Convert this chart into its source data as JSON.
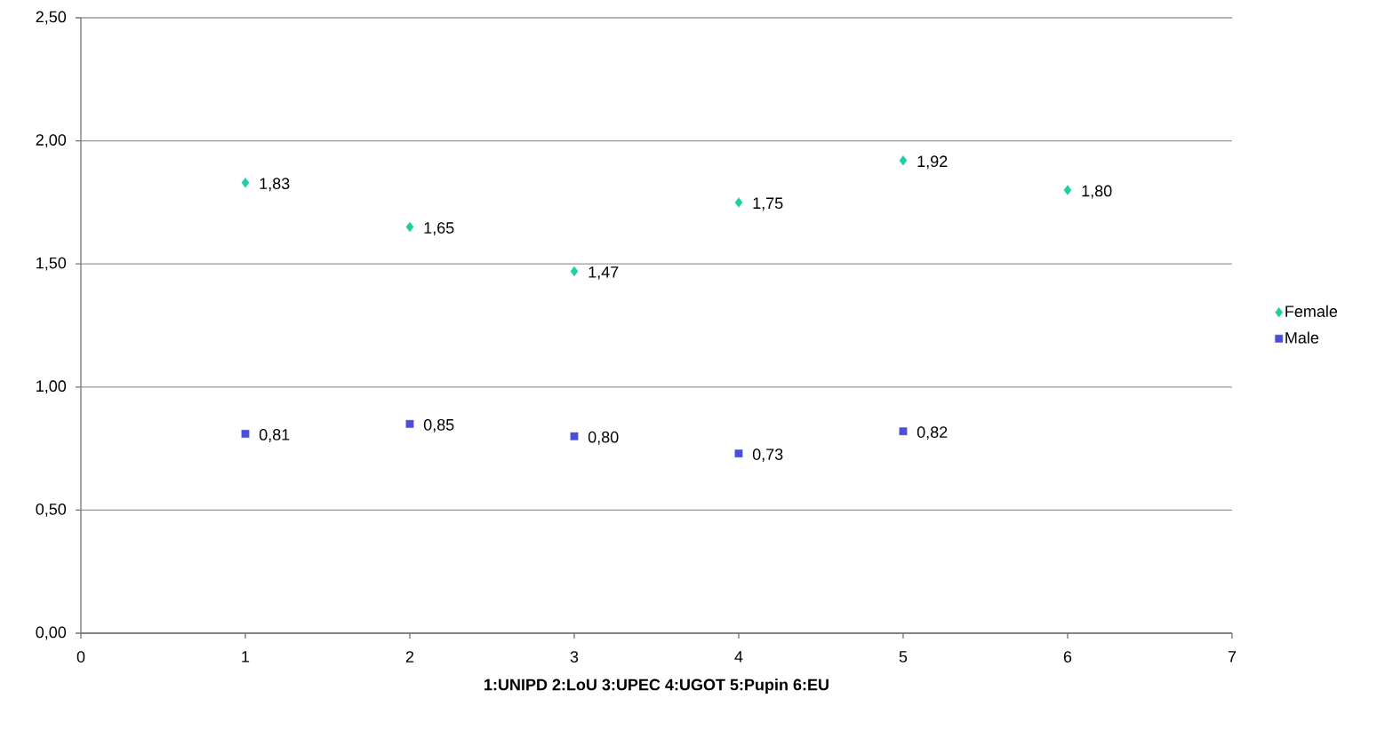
{
  "chart_data": {
    "type": "scatter",
    "xlabel": "1:UNIPD  2:LoU  3:UPEC   4:UGOT   5:Pupin   6:EU",
    "series": [
      {
        "name": "Female",
        "color": "#1fcfa3",
        "marker": "diamond",
        "x": [
          1,
          2,
          3,
          4,
          5,
          6
        ],
        "values": [
          1.83,
          1.65,
          1.47,
          1.75,
          1.92,
          1.8
        ],
        "value_labels": [
          "1,83",
          "1,65",
          "1,47",
          "1,75",
          "1,92",
          "1,80"
        ]
      },
      {
        "name": "Male",
        "color": "#4a4fd8",
        "marker": "square",
        "x": [
          1,
          2,
          3,
          4,
          5
        ],
        "values": [
          0.81,
          0.85,
          0.8,
          0.73,
          0.82
        ],
        "value_labels": [
          "0,81",
          "0,85",
          "0,80",
          "0,73",
          "0,82"
        ]
      }
    ],
    "xlim": [
      0,
      7
    ],
    "xticks": [
      0,
      1,
      2,
      3,
      4,
      5,
      6,
      7
    ],
    "ylim": [
      0,
      2.5
    ],
    "yticks": [
      {
        "value": 0,
        "label": "0,00"
      },
      {
        "value": 0.5,
        "label": "0,50"
      },
      {
        "value": 1,
        "label": "1,00"
      },
      {
        "value": 1.5,
        "label": "1,50"
      },
      {
        "value": 2,
        "label": "2,00"
      },
      {
        "value": 2.5,
        "label": "2,50"
      }
    ],
    "grid": "y",
    "legend": "right"
  }
}
